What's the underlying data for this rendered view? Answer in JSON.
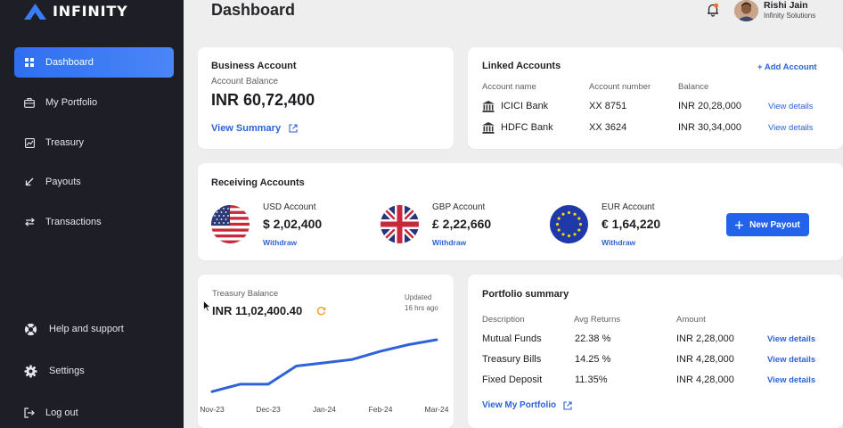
{
  "brand": {
    "name": "INFINITY"
  },
  "sidebar": {
    "items": [
      {
        "label": "Dashboard",
        "icon": "grid-icon"
      },
      {
        "label": "My Portfolio",
        "icon": "briefcase-icon"
      },
      {
        "label": "Treasury",
        "icon": "chart-icon"
      },
      {
        "label": "Payouts",
        "icon": "arrow-down-left-icon"
      },
      {
        "label": "Transactions",
        "icon": "swap-icon"
      }
    ],
    "bottom": [
      {
        "label": "Help and support",
        "icon": "lifebuoy-icon"
      },
      {
        "label": "Settings",
        "icon": "gear-icon"
      },
      {
        "label": "Log out",
        "icon": "logout-icon"
      }
    ]
  },
  "header": {
    "title": "Dashboard",
    "user": {
      "name": "Rishi Jain",
      "org": "Infinity Solutions"
    }
  },
  "business": {
    "title": "Business Account",
    "balance_label": "Account Balance",
    "balance": "INR 60,72,400",
    "link": "View Summary"
  },
  "linked": {
    "title": "Linked Accounts",
    "add_label": "+ Add Account",
    "headers": [
      "Account name",
      "Account number",
      "Balance"
    ],
    "rows": [
      {
        "name": "ICICI Bank",
        "number": "XX 8751",
        "balance": "INR 20,28,000",
        "action": "View details"
      },
      {
        "name": "HDFC Bank",
        "number": "XX 3624",
        "balance": "INR 30,34,000",
        "action": "View details"
      }
    ]
  },
  "receiving": {
    "title": "Receiving Accounts",
    "accounts": [
      {
        "label": "USD Account",
        "amount": "$ 2,02,400",
        "action": "Withdraw"
      },
      {
        "label": "GBP Account",
        "amount": "£ 2,22,660",
        "action": "Withdraw"
      },
      {
        "label": "EUR Account",
        "amount": "€ 1,64,220",
        "action": "Withdraw"
      }
    ],
    "new_payout": "New Payout"
  },
  "treasury": {
    "label": "Treasury Balance",
    "amount": "INR 11,02,400.40",
    "updated_label": "Updated",
    "updated_time": "16 hrs ago"
  },
  "chart_data": {
    "type": "line",
    "categories": [
      "Nov-23",
      "Dec-23",
      "Jan-24",
      "Feb-24",
      "Mar-24"
    ],
    "x": [
      0,
      0.5,
      1,
      1.5,
      2,
      2.5,
      3,
      3.5,
      4
    ],
    "series": [
      {
        "values": [
          3,
          12,
          12,
          34,
          38,
          42,
          52,
          60,
          66
        ]
      }
    ],
    "ylim": [
      0,
      80
    ],
    "grid": false,
    "color": "#2f62d8"
  },
  "portfolio": {
    "title": "Portfolio summary",
    "headers": [
      "Description",
      "Avg Returns",
      "Amount"
    ],
    "rows": [
      {
        "desc": "Mutual Funds",
        "ret": "22.38 %",
        "amount": "INR 2,28,000",
        "action": "View details"
      },
      {
        "desc": "Treasury Bills",
        "ret": "14.25 %",
        "amount": "INR 4,28,000",
        "action": "View details"
      },
      {
        "desc": "Fixed Deposit",
        "ret": "11.35%",
        "amount": "INR 4,28,000",
        "action": "View details"
      }
    ],
    "link": "View My Portfolio"
  }
}
